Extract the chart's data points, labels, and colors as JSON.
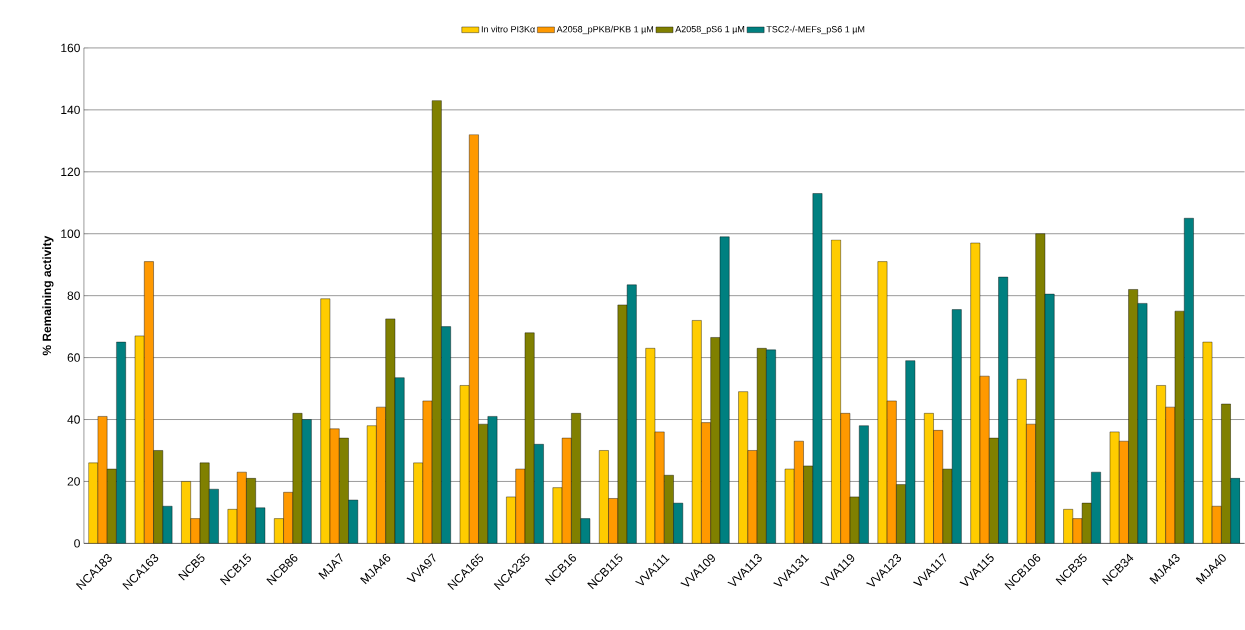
{
  "chart_data": {
    "type": "bar",
    "ylabel": "% Remaining activity",
    "categories": [
      "NCA183",
      "NCA163",
      "NCB5",
      "NCB15",
      "NCB86",
      "MJA7",
      "MJA46",
      "VVA97",
      "NCA165",
      "NCA235",
      "NCB16",
      "NCB115",
      "VVA111",
      "VVA109",
      "VVA113",
      "VVA131",
      "VVA119",
      "VVA123",
      "VVA117",
      "VVA115",
      "NCB106",
      "NCB35",
      "NCB34",
      "MJA43",
      "MJA40"
    ],
    "series": [
      {
        "name": "In vitro PI3Kα",
        "color": "#ffcc00",
        "values": [
          26,
          67,
          20,
          11,
          8,
          79,
          38,
          26,
          51,
          15,
          18,
          30,
          63,
          72,
          49,
          24,
          98,
          91,
          42,
          97,
          53,
          11,
          36,
          51,
          65
        ]
      },
      {
        "name": "A2058_pPKB/PKB 1 µM",
        "color": "#ff9900",
        "values": [
          41,
          91,
          8,
          23,
          16.5,
          37,
          44,
          46,
          132,
          24,
          34,
          14.5,
          36,
          39,
          30,
          33,
          42,
          46,
          36.5,
          54,
          38.5,
          8,
          33,
          44,
          12
        ]
      },
      {
        "name": "A2058_pS6 1 µM",
        "color": "#808000",
        "values": [
          24,
          30,
          26,
          21,
          42,
          34,
          72.5,
          143,
          38.5,
          68,
          42,
          77,
          22,
          66.5,
          63,
          25,
          15,
          19,
          24,
          34,
          100,
          13,
          82,
          75,
          45
        ]
      },
      {
        "name": "TSC2-/-MEFs_pS6 1 µM",
        "color": "#008080",
        "values": [
          65,
          12,
          17.5,
          11.5,
          40,
          14,
          53.5,
          70,
          41,
          32,
          8,
          83.5,
          13,
          99,
          62.5,
          113,
          38,
          59,
          75.5,
          86,
          80.5,
          23,
          77.5,
          105,
          21
        ]
      }
    ],
    "ylim": [
      0,
      160
    ],
    "yticks": [
      0,
      20,
      40,
      60,
      80,
      100,
      120,
      140,
      160
    ],
    "grid": "y",
    "legend": "top"
  }
}
